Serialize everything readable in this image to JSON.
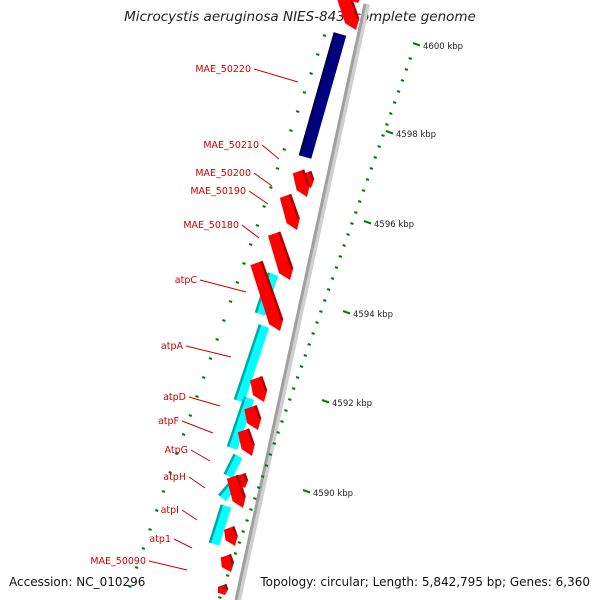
{
  "title": "Microcystis aeruginosa NIES-843, complete genome",
  "accession": "Accession: NC_010296",
  "summary": "Topology: circular; Length: 5,842,795 bp; Genes: 6,360",
  "colors": {
    "forward_cds": "#ff0000",
    "reverse_cds": "#000080",
    "rna": "#00ffff",
    "gene_label": "#cc0000",
    "ticks": "#008000",
    "backbone": "#a0a0a0"
  },
  "scale_labels": [
    "4600 kbp",
    "4598 kbp",
    "4596 kbp",
    "4594 kbp",
    "4592 kbp",
    "4590 kbp"
  ],
  "gene_labels": [
    "MAE_50220",
    "MAE_50210",
    "MAE_50200",
    "MAE_50190",
    "MAE_50180",
    "atpC",
    "atpA",
    "atpD",
    "atpF",
    "AtpG",
    "atpH",
    "atpI",
    "atp1",
    "MAE_50090"
  ]
}
